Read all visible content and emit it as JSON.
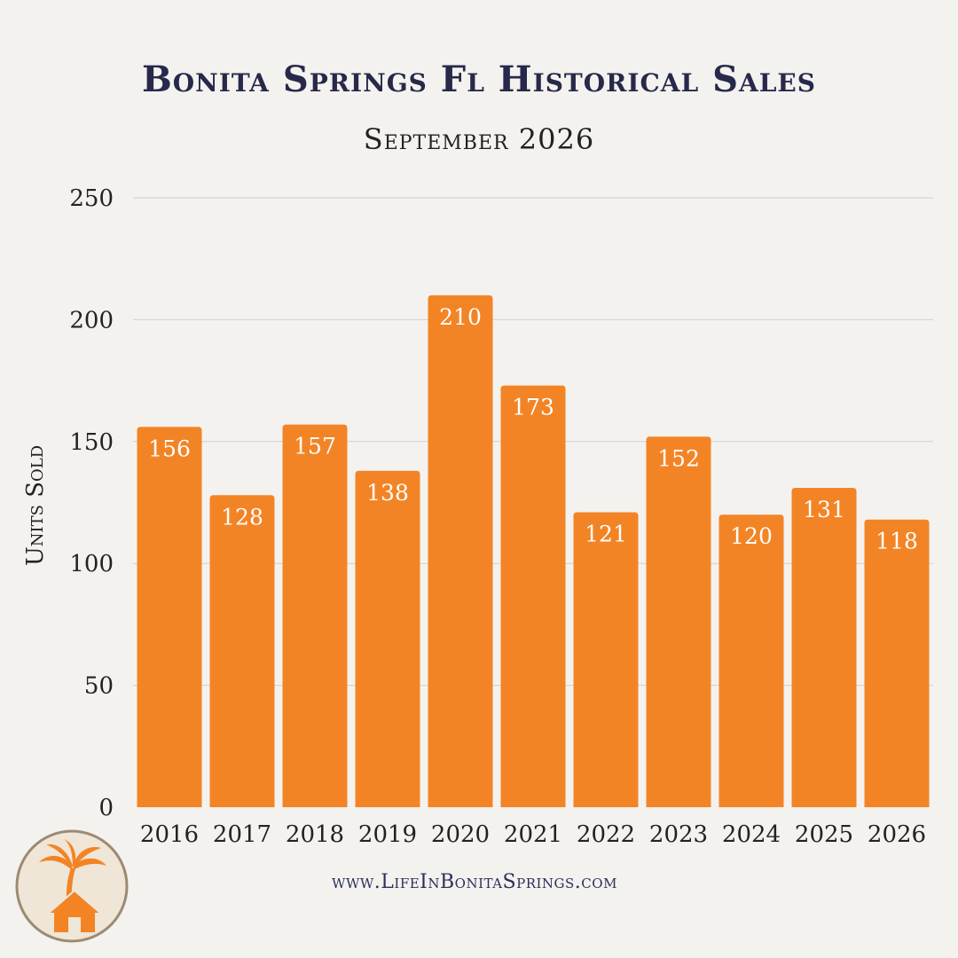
{
  "header": {
    "title": "Bonita Springs Fl Historical Sales",
    "subtitle": "September 2026"
  },
  "footer": {
    "url": "www.LifeInBonitaSprings.com"
  },
  "logo": {
    "icon": "palm-tree-house-icon"
  },
  "colors": {
    "bar": "#f38425",
    "title": "#27294a",
    "grid": "#cfcfcf",
    "background": "#f4f2ef",
    "logo_ring": "#9c8a73",
    "logo_fill": "#efe6d7"
  },
  "chart_data": {
    "type": "bar",
    "title": "Bonita Springs Fl Historical Sales",
    "subtitle": "September 2026",
    "xlabel": "",
    "ylabel": "Units Sold",
    "categories": [
      "2016",
      "2017",
      "2018",
      "2019",
      "2020",
      "2021",
      "2022",
      "2023",
      "2024",
      "2025",
      "2026"
    ],
    "values": [
      156,
      128,
      157,
      138,
      210,
      173,
      121,
      152,
      120,
      131,
      118
    ],
    "ylim": [
      0,
      250
    ],
    "yticks": [
      0,
      50,
      100,
      150,
      200,
      250
    ],
    "grid": true,
    "data_labels": true,
    "legend": "none"
  }
}
